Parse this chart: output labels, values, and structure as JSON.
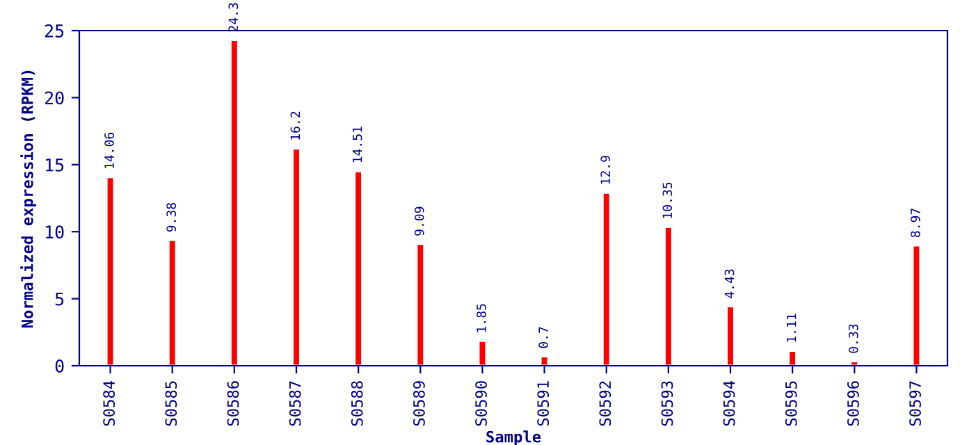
{
  "chart_data": {
    "type": "bar",
    "xlabel": "Sample",
    "ylabel": "Normalized expression (RPKM)",
    "categories": [
      "S0584",
      "S0585",
      "S0586",
      "S0587",
      "S0588",
      "S0589",
      "S0590",
      "S0591",
      "S0592",
      "S0593",
      "S0594",
      "S0595",
      "S0596",
      "S0597"
    ],
    "series": [
      {
        "color": "#ff0000",
        "values": [
          14.06,
          9.38,
          24.3,
          16.2,
          14.51,
          9.09,
          1.85,
          0.7,
          12.9,
          10.35,
          4.43,
          1.11,
          0.33,
          8.97
        ]
      }
    ],
    "value_labels": [
      "14.06",
      "9.38",
      "24.3",
      "16.2",
      "14.51",
      "9.09",
      "1.85",
      "0.7",
      "12.9",
      "10.35",
      "4.43",
      "1.11",
      "0.33",
      "8.97"
    ],
    "ylim": [
      0,
      25
    ],
    "yticks": [
      0,
      5,
      10,
      15,
      20,
      25
    ],
    "grid": false,
    "legend": false
  }
}
